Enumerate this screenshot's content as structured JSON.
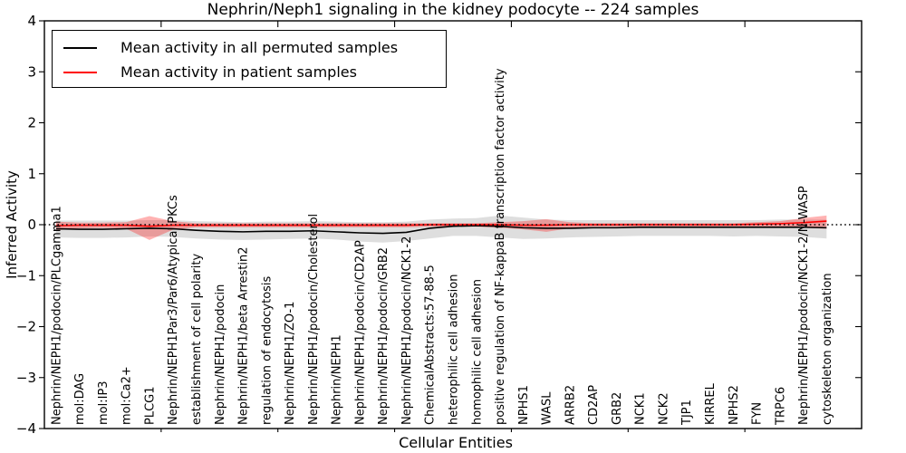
{
  "figure": {
    "title": "Nephrin/Neph1 signaling in the kidney podocyte -- 224 samples",
    "xlabel": "Cellular Entities",
    "ylabel": "Inferred Activity"
  },
  "legend": {
    "items": [
      {
        "label": "Mean activity in all permuted samples",
        "color": "#000000"
      },
      {
        "label": "Mean activity in patient samples",
        "color": "#ff0000"
      }
    ],
    "position": "upper left"
  },
  "chart_data": {
    "type": "line",
    "title": "Nephrin/Neph1 signaling in the kidney podocyte -- 224 samples",
    "xlabel": "Cellular Entities",
    "ylabel": "Inferred Activity",
    "ylim": [
      -4,
      4
    ],
    "yticks": [
      4,
      3,
      2,
      1,
      0,
      -1,
      -2,
      -3,
      -4
    ],
    "x_axis_units": 35,
    "xticks_minor_step": 5,
    "grid": false,
    "zero_line": {
      "show": true,
      "style": "dotted",
      "color": "#000000"
    },
    "legend_position": "upper left",
    "categories": [
      "Nephrin/NEPH1/podocin/PLCgamma1",
      "mol:DAG",
      "mol:IP3",
      "mol:Ca2+",
      "PLCG1",
      "Nephrin/NEPH1Par3/Par6/Atypical PKCs",
      "establishment of cell polarity",
      "Nephrin/NEPH1/podocin",
      "Nephrin/NEPH1/beta Arrestin2",
      "regulation of endocytosis",
      "Nephrin/NEPH1/ZO-1",
      "Nephrin/NEPH1/podocin/Cholesterol",
      "Nephrin/NEPH1",
      "Nephrin/NEPH1/podocin/CD2AP",
      "Nephrin/NEPH1/podocin/GRB2",
      "Nephrin/NEPH1/podocin/NCK1-2",
      "ChemicalAbstracts:57-88-5",
      "heterophilic cell adhesion",
      "homophilic cell adhesion",
      "positive regulation of NF-kappaB transcription factor activity",
      "NPHS1",
      "WASL",
      "ARRB2",
      "CD2AP",
      "GRB2",
      "NCK1",
      "NCK2",
      "TJP1",
      "KIRREL",
      "NPHS2",
      "FYN",
      "TRPC6",
      "Nephrin/NEPH1/podocin/NCK1-2/N-WASP",
      "cytoskeleton organization"
    ],
    "series": [
      {
        "name": "Mean activity in all permuted samples",
        "color": "#000000",
        "band_color": "rgba(0,0,0,0.13)",
        "values": [
          -0.08,
          -0.09,
          -0.09,
          -0.08,
          -0.07,
          -0.08,
          -0.11,
          -0.13,
          -0.14,
          -0.13,
          -0.13,
          -0.12,
          -0.14,
          -0.16,
          -0.17,
          -0.15,
          -0.07,
          -0.03,
          -0.02,
          -0.03,
          -0.06,
          -0.07,
          -0.07,
          -0.06,
          -0.06,
          -0.05,
          -0.05,
          -0.05,
          -0.05,
          -0.05,
          -0.05,
          -0.05,
          -0.05,
          -0.06
        ],
        "band_low": [
          -0.25,
          -0.26,
          -0.26,
          -0.25,
          -0.23,
          -0.24,
          -0.27,
          -0.29,
          -0.3,
          -0.29,
          -0.28,
          -0.27,
          -0.29,
          -0.33,
          -0.35,
          -0.32,
          -0.27,
          -0.22,
          -0.22,
          -0.25,
          -0.28,
          -0.27,
          -0.25,
          -0.24,
          -0.23,
          -0.22,
          -0.22,
          -0.22,
          -0.22,
          -0.23,
          -0.22,
          -0.23,
          -0.24,
          -0.27
        ],
        "band_high": [
          0.08,
          0.08,
          0.08,
          0.08,
          0.09,
          0.09,
          0.07,
          0.06,
          0.05,
          0.06,
          0.06,
          0.07,
          0.06,
          0.05,
          0.05,
          0.06,
          0.1,
          0.12,
          0.13,
          0.18,
          0.14,
          0.1,
          0.09,
          0.09,
          0.09,
          0.09,
          0.09,
          0.09,
          0.09,
          0.09,
          0.09,
          0.1,
          0.1,
          0.1
        ]
      },
      {
        "name": "Mean activity in patient samples",
        "color": "#ff0000",
        "band_color": "rgba(255,0,0,0.30)",
        "values": [
          -0.02,
          -0.01,
          -0.01,
          -0.01,
          -0.03,
          -0.01,
          -0.01,
          -0.01,
          -0.01,
          -0.01,
          -0.01,
          -0.01,
          -0.01,
          -0.01,
          -0.01,
          -0.01,
          0,
          0,
          0,
          0,
          -0.01,
          -0.01,
          0,
          0,
          0,
          0,
          0,
          0,
          0,
          0,
          0.01,
          0.02,
          0.04,
          0.07
        ],
        "band_low": [
          -0.11,
          -0.07,
          -0.06,
          -0.08,
          -0.3,
          -0.1,
          -0.05,
          -0.05,
          -0.05,
          -0.05,
          -0.05,
          -0.05,
          -0.05,
          -0.05,
          -0.05,
          -0.05,
          -0.04,
          -0.04,
          -0.04,
          -0.06,
          -0.09,
          -0.14,
          -0.07,
          -0.04,
          -0.04,
          -0.04,
          -0.04,
          -0.04,
          -0.04,
          -0.04,
          -0.04,
          -0.05,
          -0.06,
          -0.08
        ],
        "band_high": [
          0.06,
          0.04,
          0.04,
          0.05,
          0.17,
          0.07,
          0.03,
          0.03,
          0.03,
          0.03,
          0.03,
          0.03,
          0.03,
          0.03,
          0.03,
          0.03,
          0.03,
          0.03,
          0.03,
          0.05,
          0.07,
          0.11,
          0.05,
          0.03,
          0.03,
          0.03,
          0.03,
          0.03,
          0.03,
          0.03,
          0.05,
          0.07,
          0.13,
          0.18
        ]
      }
    ]
  }
}
